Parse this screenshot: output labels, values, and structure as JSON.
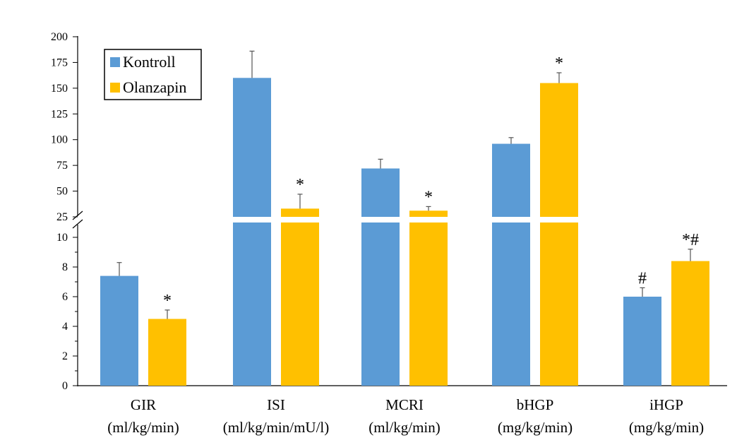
{
  "chart_data": {
    "type": "bar",
    "broken_axis": true,
    "categories": [
      {
        "name": "GIR",
        "unit": "(ml/kg/min)",
        "panel": "lower"
      },
      {
        "name": "ISI",
        "unit": "(ml/kg/min/mU/l)",
        "panel": "upper"
      },
      {
        "name": "MCRI",
        "unit": "(ml/kg/min)",
        "panel": "upper"
      },
      {
        "name": "bHGP",
        "unit": "(mg/kg/min)",
        "panel": "upper"
      },
      {
        "name": "iHGP",
        "unit": "(mg/kg/min)",
        "panel": "lower"
      }
    ],
    "series": [
      {
        "name": "Kontroll",
        "color": "#5b9bd5",
        "values": [
          7.4,
          160,
          72,
          96,
          6.0
        ],
        "errors": [
          0.9,
          26,
          9,
          6,
          0.6
        ],
        "annotations": [
          "",
          "",
          "",
          "",
          "#"
        ]
      },
      {
        "name": "Olanzapin",
        "color": "#ffc000",
        "values": [
          4.5,
          33,
          31,
          155,
          8.4
        ],
        "errors": [
          0.6,
          14,
          4,
          10,
          0.8
        ],
        "annotations": [
          "*",
          "*",
          "*",
          "*",
          "*#"
        ]
      }
    ],
    "lower_axis": {
      "ylim": [
        0,
        11
      ],
      "ticks": [
        "0",
        "2",
        "4",
        "6",
        "8",
        "10"
      ],
      "tick_values": [
        0,
        2,
        4,
        6,
        8,
        10
      ]
    },
    "upper_axis": {
      "ylim": [
        25,
        200
      ],
      "ticks": [
        "25",
        "50",
        "75",
        "100",
        "125",
        "150",
        "175",
        "200"
      ],
      "tick_values": [
        25,
        50,
        75,
        100,
        125,
        150,
        175,
        200
      ]
    },
    "legend": {
      "placement": "top-left",
      "entries": [
        "Kontroll",
        "Olanzapin"
      ]
    },
    "title": "",
    "xlabel": "",
    "ylabel": ""
  }
}
